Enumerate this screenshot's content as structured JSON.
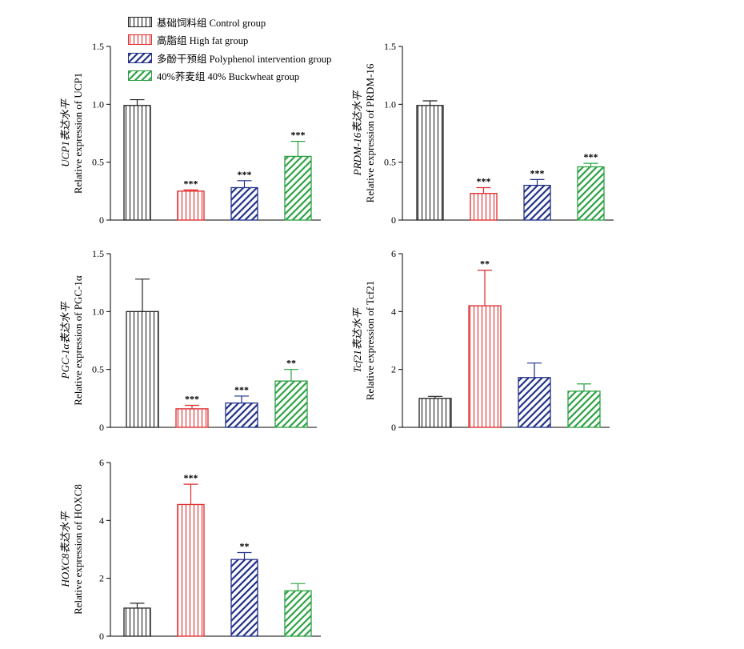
{
  "legend": {
    "items": [
      {
        "label": "基础饲料组 Control group",
        "color": "#222222",
        "pattern": "vlines"
      },
      {
        "label": "高脂组 High fat group",
        "color": "#e0282a",
        "pattern": "vlines"
      },
      {
        "label": "多酚干预组 Polyphenol intervention group",
        "color": "#1f2f86",
        "pattern": "diag"
      },
      {
        "label": "40%荞麦组 40% Buckwheat group",
        "color": "#2ca043",
        "pattern": "diag"
      }
    ]
  },
  "chart_data": [
    {
      "type": "bar",
      "ylabel_cn": "UCP1表达水平",
      "ylabel_en": "Relative expression of UCP1",
      "ylim": [
        0,
        1.5
      ],
      "yticks": [
        "0",
        "0.5",
        "1.0",
        "1.5"
      ],
      "tick_values": [
        0,
        0.5,
        1.0,
        1.5
      ],
      "categories": [
        "基础饲料组 Control group",
        "高脂组 High fat group",
        "多酚干预组 Polyphenol intervention group",
        "40%荞麦组 40% Buckwheat group"
      ],
      "values": [
        0.99,
        0.25,
        0.28,
        0.55
      ],
      "errors": [
        0.05,
        0.01,
        0.06,
        0.13
      ],
      "significance": [
        "",
        "***",
        "***",
        "***"
      ]
    },
    {
      "type": "bar",
      "ylabel_cn": "PRDM-16表达水平",
      "ylabel_en": "Relative expression of PRDM-16",
      "ylim": [
        0,
        1.5
      ],
      "yticks": [
        "0",
        "0.5",
        "1.0",
        "1.5"
      ],
      "tick_values": [
        0,
        0.5,
        1.0,
        1.5
      ],
      "categories": [
        "基础饲料组 Control group",
        "高脂组 High fat group",
        "多酚干预组 Polyphenol intervention group",
        "40%荞麦组 40% Buckwheat group"
      ],
      "values": [
        0.99,
        0.23,
        0.3,
        0.46
      ],
      "errors": [
        0.04,
        0.05,
        0.05,
        0.03
      ],
      "significance": [
        "",
        "***",
        "***",
        "***"
      ]
    },
    {
      "type": "bar",
      "ylabel_cn": "PGC-1α表达水平",
      "ylabel_en": "Relative expression of PGC-1α",
      "ylim": [
        0,
        1.5
      ],
      "yticks": [
        "0",
        "0.5",
        "1.0",
        "1.5"
      ],
      "tick_values": [
        0,
        0.5,
        1.0,
        1.5
      ],
      "categories": [
        "基础饲料组 Control group",
        "高脂组 High fat group",
        "多酚干预组 Polyphenol intervention group",
        "40%荞麦组 40% Buckwheat group"
      ],
      "values": [
        1.0,
        0.16,
        0.21,
        0.4
      ],
      "errors": [
        0.28,
        0.03,
        0.06,
        0.1
      ],
      "significance": [
        "",
        "***",
        "***",
        "**"
      ]
    },
    {
      "type": "bar",
      "ylabel_cn": "Tcf21表达水平",
      "ylabel_en": "Relative expression of Tcf21",
      "ylim": [
        0,
        6
      ],
      "yticks": [
        "0",
        "2",
        "4",
        "6"
      ],
      "tick_values": [
        0,
        2,
        4,
        6
      ],
      "categories": [
        "基础饲料组 Control group",
        "高脂组 High fat group",
        "多酚干预组 Polyphenol intervention group",
        "40%荞麦组 40% Buckwheat group"
      ],
      "values": [
        1.0,
        4.2,
        1.72,
        1.25
      ],
      "errors": [
        0.07,
        1.23,
        0.5,
        0.25
      ],
      "significance": [
        "",
        "**",
        "",
        ""
      ]
    },
    {
      "type": "bar",
      "ylabel_cn": "HOXC8表达水平",
      "ylabel_en": "Relative expression of HOXC8",
      "ylim": [
        0,
        6
      ],
      "yticks": [
        "0",
        "2",
        "4",
        "6"
      ],
      "tick_values": [
        0,
        2,
        4,
        6
      ],
      "categories": [
        "基础饲料组 Control group",
        "高脂组 High fat group",
        "多酚干预组 Polyphenol intervention group",
        "40%荞麦组 40% Buckwheat group"
      ],
      "values": [
        0.97,
        4.55,
        2.65,
        1.57
      ],
      "errors": [
        0.17,
        0.7,
        0.24,
        0.25
      ],
      "significance": [
        "",
        "***",
        "**",
        ""
      ]
    }
  ]
}
